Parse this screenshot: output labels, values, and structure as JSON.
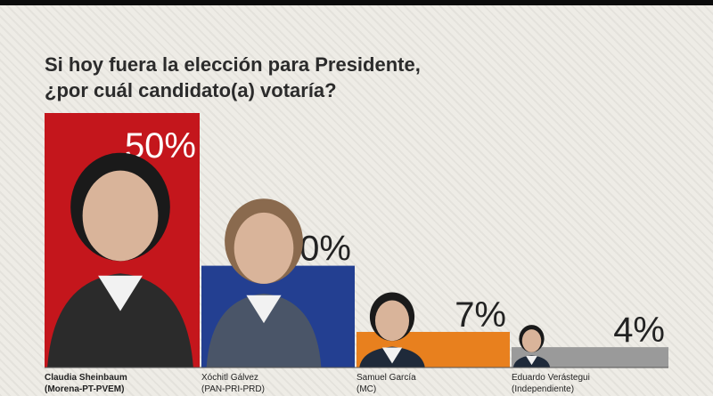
{
  "headline": {
    "line1": "Si hoy fuera la elección para Presidente,",
    "line2": "¿por cuál candidato(a) votaría?"
  },
  "chart_data": {
    "type": "bar",
    "title": "Si hoy fuera la elección para Presidente, ¿por cuál candidato(a) votaría?",
    "xlabel": "",
    "ylabel": "",
    "ylim": [
      0,
      50
    ],
    "categories": [
      "Claudia Sheinbaum (Morena-PT-PVEM)",
      "Xóchitl Gálvez (PAN-PRI-PRD)",
      "Samuel García (MC)",
      "Eduardo Verástegui (Independiente)"
    ],
    "values": [
      50,
      20,
      7,
      4
    ],
    "value_labels": [
      "50%",
      "20%",
      "7%",
      "4%"
    ],
    "names": [
      "Claudia Sheinbaum",
      "Xóchitl Gálvez",
      "Samuel García",
      "Eduardo Verástegui"
    ],
    "parties": [
      "(Morena-PT-PVEM)",
      "(PAN-PRI-PRD)",
      "(MC)",
      "(Independiente)"
    ],
    "colors": [
      "#c4161c",
      "#233f91",
      "#e8801e",
      "#9a9a9a"
    ],
    "photo_icons": [
      "candidate-portrait",
      "candidate-portrait",
      "candidate-portrait",
      "candidate-portrait"
    ],
    "grid": false,
    "legend": "none"
  }
}
